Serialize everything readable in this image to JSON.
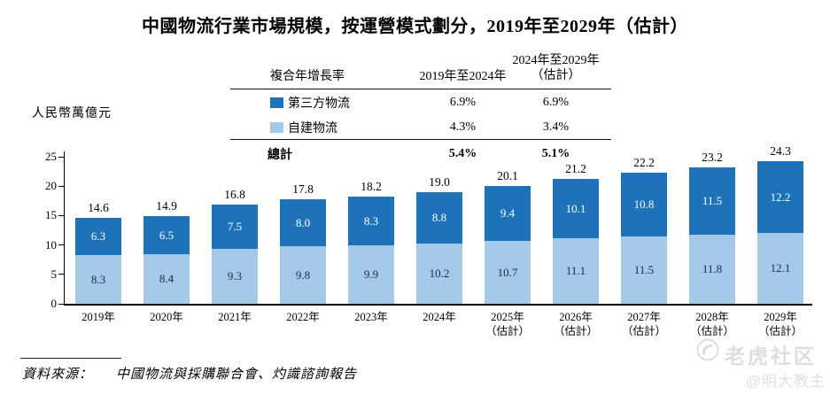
{
  "title": "中國物流行業市場規模，按運營模式劃分，2019年至2029年（估計）",
  "y_axis_unit": "人民幣萬億元",
  "colors": {
    "third_party_blue": "#1e73b8",
    "self_built_blue": "#a5c9e9",
    "axis_black": "#000000",
    "watermark_gray": "#dedede"
  },
  "cagr_table": {
    "header_col1": "複合年增長率",
    "header_col2": "2019年至2024年",
    "header_col3_line1": "2024年至2029年",
    "header_col3_line2": "（估計）",
    "rows": [
      {
        "label": "第三方物流",
        "period1": "6.9%",
        "period2": "6.9%"
      },
      {
        "label": "自建物流",
        "period1": "4.3%",
        "period2": "3.4%"
      }
    ],
    "total": {
      "label": "總計",
      "period1": "5.4%",
      "period2": "5.1%"
    }
  },
  "chart_data": {
    "type": "bar",
    "stacked": true,
    "title": "中國物流行業市場規模，按運營模式劃分，2019年至2029年（估計）",
    "ylabel": "人民幣萬億元",
    "ylim": [
      0,
      25
    ],
    "yticks": [
      0,
      5,
      10,
      15,
      20,
      25
    ],
    "grid": false,
    "x_labels": [
      {
        "year": "2019年",
        "note": ""
      },
      {
        "year": "2020年",
        "note": ""
      },
      {
        "year": "2021年",
        "note": ""
      },
      {
        "year": "2022年",
        "note": ""
      },
      {
        "year": "2023年",
        "note": ""
      },
      {
        "year": "2024年",
        "note": ""
      },
      {
        "year": "2025年",
        "note": "（估計）"
      },
      {
        "year": "2026年",
        "note": "（估計）"
      },
      {
        "year": "2027年",
        "note": "（估計）"
      },
      {
        "year": "2028年",
        "note": "（估計）"
      },
      {
        "year": "2029年",
        "note": "（估計）"
      }
    ],
    "series": [
      {
        "name": "第三方物流",
        "color": "#1e73b8",
        "values": [
          6.3,
          6.5,
          7.5,
          8.0,
          8.3,
          8.8,
          9.4,
          10.1,
          10.8,
          11.5,
          12.2
        ]
      },
      {
        "name": "自建物流",
        "color": "#a5c9e9",
        "values": [
          8.3,
          8.4,
          9.3,
          9.8,
          9.9,
          10.2,
          10.7,
          11.1,
          11.5,
          11.8,
          12.1
        ]
      }
    ],
    "totals": [
      14.6,
      14.9,
      16.8,
      17.8,
      18.2,
      19.0,
      20.1,
      21.2,
      22.2,
      23.2,
      24.3
    ]
  },
  "footer": {
    "source_label": "資料來源：",
    "source_text": "中國物流與採購聯合會、灼識諮詢報告"
  },
  "watermark": {
    "brand": "老虎社区",
    "author": "@明大教主"
  }
}
